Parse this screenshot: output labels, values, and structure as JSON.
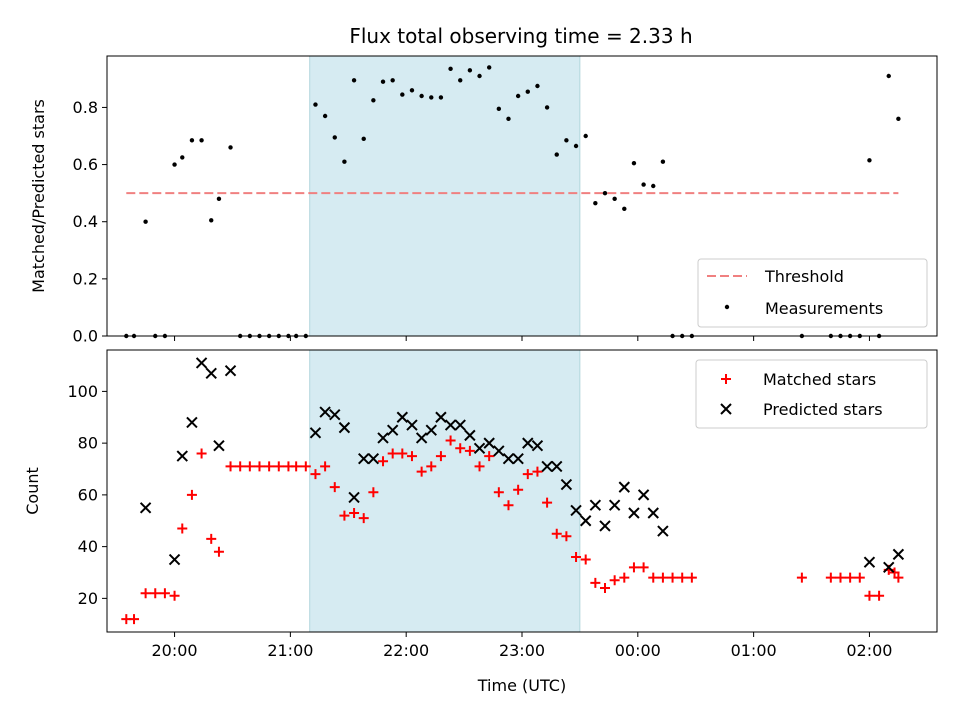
{
  "title": "Flux total observing time = 2.33 h",
  "chart_data": [
    {
      "type": "scatter",
      "panel": "top",
      "ylabel": "Matched/Predicted stars",
      "xlabel": "",
      "xlim": [
        "19:25",
        "02:35"
      ],
      "ylim": [
        0,
        0.98
      ],
      "yticks": [
        0.0,
        0.2,
        0.4,
        0.6,
        0.8
      ],
      "ytick_labels": [
        "0.0",
        "0.2",
        "0.4",
        "0.6",
        "0.8"
      ],
      "shaded_interval": [
        "21:10",
        "23:30"
      ],
      "shade_color": "#add8e6",
      "threshold": {
        "name": "Threshold",
        "y": 0.5,
        "x_range": [
          "19:35",
          "02:15"
        ],
        "color": "#f08080"
      },
      "legend": {
        "placement": "lower right",
        "entries": [
          "Threshold",
          "Measurements"
        ]
      },
      "series": [
        {
          "name": "Measurements",
          "color": "#000000",
          "marker": "dot",
          "points": [
            [
              "19:35",
              0.0
            ],
            [
              "19:39",
              0.0
            ],
            [
              "19:45",
              0.4
            ],
            [
              "19:50",
              0.0
            ],
            [
              "19:55",
              0.0
            ],
            [
              "20:00",
              0.6
            ],
            [
              "20:04",
              0.625
            ],
            [
              "20:09",
              0.685
            ],
            [
              "20:14",
              0.685
            ],
            [
              "20:19",
              0.405
            ],
            [
              "20:23",
              0.48
            ],
            [
              "20:29",
              0.66
            ],
            [
              "20:34",
              0.0
            ],
            [
              "20:39",
              0.0
            ],
            [
              "20:44",
              0.0
            ],
            [
              "20:49",
              0.0
            ],
            [
              "20:54",
              0.0
            ],
            [
              "20:59",
              0.0
            ],
            [
              "21:03",
              0.0
            ],
            [
              "21:08",
              0.0
            ],
            [
              "21:13",
              0.81
            ],
            [
              "21:18",
              0.77
            ],
            [
              "21:23",
              0.695
            ],
            [
              "21:28",
              0.61
            ],
            [
              "21:33",
              0.895
            ],
            [
              "21:38",
              0.69
            ],
            [
              "21:43",
              0.825
            ],
            [
              "21:48",
              0.89
            ],
            [
              "21:53",
              0.895
            ],
            [
              "21:58",
              0.845
            ],
            [
              "22:03",
              0.86
            ],
            [
              "22:08",
              0.84
            ],
            [
              "22:13",
              0.835
            ],
            [
              "22:18",
              0.835
            ],
            [
              "22:23",
              0.935
            ],
            [
              "22:28",
              0.895
            ],
            [
              "22:33",
              0.93
            ],
            [
              "22:38",
              0.91
            ],
            [
              "22:43",
              0.94
            ],
            [
              "22:48",
              0.795
            ],
            [
              "22:53",
              0.76
            ],
            [
              "22:58",
              0.84
            ],
            [
              "23:03",
              0.855
            ],
            [
              "23:08",
              0.875
            ],
            [
              "23:13",
              0.8
            ],
            [
              "23:18",
              0.635
            ],
            [
              "23:23",
              0.685
            ],
            [
              "23:28",
              0.665
            ],
            [
              "23:33",
              0.7
            ],
            [
              "23:38",
              0.465
            ],
            [
              "23:43",
              0.5
            ],
            [
              "23:48",
              0.48
            ],
            [
              "23:53",
              0.445
            ],
            [
              "23:58",
              0.605
            ],
            [
              "00:03",
              0.53
            ],
            [
              "00:08",
              0.525
            ],
            [
              "00:13",
              0.61
            ],
            [
              "00:18",
              0.0
            ],
            [
              "00:23",
              0.0
            ],
            [
              "00:28",
              0.0
            ],
            [
              "01:25",
              0.0
            ],
            [
              "01:40",
              0.0
            ],
            [
              "01:45",
              0.0
            ],
            [
              "01:50",
              0.0
            ],
            [
              "01:55",
              0.0
            ],
            [
              "02:00",
              0.615
            ],
            [
              "02:05",
              0.0
            ],
            [
              "02:10",
              0.91
            ],
            [
              "02:15",
              0.76
            ]
          ]
        }
      ]
    },
    {
      "type": "scatter",
      "panel": "bottom",
      "ylabel": "Count",
      "xlabel": "Time (UTC)",
      "xlim": [
        "19:25",
        "02:35"
      ],
      "ylim": [
        7,
        116
      ],
      "yticks": [
        20,
        40,
        60,
        80,
        100
      ],
      "ytick_labels": [
        "20",
        "40",
        "60",
        "80",
        "100"
      ],
      "xticks": [
        "20:00",
        "21:00",
        "22:00",
        "23:00",
        "00:00",
        "01:00",
        "02:00"
      ],
      "shaded_interval": [
        "21:10",
        "23:30"
      ],
      "shade_color": "#add8e6",
      "legend": {
        "placement": "upper right",
        "entries": [
          "Matched stars",
          "Predicted stars"
        ]
      },
      "series": [
        {
          "name": "Matched stars",
          "color": "#ff0000",
          "marker": "plus",
          "points": [
            [
              "19:35",
              12
            ],
            [
              "19:39",
              12
            ],
            [
              "19:45",
              22
            ],
            [
              "19:50",
              22
            ],
            [
              "19:55",
              22
            ],
            [
              "20:00",
              21
            ],
            [
              "20:04",
              47
            ],
            [
              "20:09",
              60
            ],
            [
              "20:14",
              76
            ],
            [
              "20:19",
              43
            ],
            [
              "20:23",
              38
            ],
            [
              "20:29",
              71
            ],
            [
              "20:34",
              71
            ],
            [
              "20:39",
              71
            ],
            [
              "20:44",
              71
            ],
            [
              "20:49",
              71
            ],
            [
              "20:54",
              71
            ],
            [
              "20:59",
              71
            ],
            [
              "21:03",
              71
            ],
            [
              "21:08",
              71
            ],
            [
              "21:13",
              68
            ],
            [
              "21:18",
              71
            ],
            [
              "21:23",
              63
            ],
            [
              "21:28",
              52
            ],
            [
              "21:33",
              53
            ],
            [
              "21:38",
              51
            ],
            [
              "21:43",
              61
            ],
            [
              "21:48",
              73
            ],
            [
              "21:53",
              76
            ],
            [
              "21:58",
              76
            ],
            [
              "22:03",
              75
            ],
            [
              "22:08",
              69
            ],
            [
              "22:13",
              71
            ],
            [
              "22:18",
              75
            ],
            [
              "22:23",
              81
            ],
            [
              "22:28",
              78
            ],
            [
              "22:33",
              77
            ],
            [
              "22:38",
              71
            ],
            [
              "22:43",
              75
            ],
            [
              "22:48",
              61
            ],
            [
              "22:53",
              56
            ],
            [
              "22:58",
              62
            ],
            [
              "23:03",
              68
            ],
            [
              "23:08",
              69
            ],
            [
              "23:13",
              57
            ],
            [
              "23:18",
              45
            ],
            [
              "23:23",
              44
            ],
            [
              "23:28",
              36
            ],
            [
              "23:33",
              35
            ],
            [
              "23:38",
              26
            ],
            [
              "23:43",
              24
            ],
            [
              "23:48",
              27
            ],
            [
              "23:53",
              28
            ],
            [
              "23:58",
              32
            ],
            [
              "00:03",
              32
            ],
            [
              "00:08",
              28
            ],
            [
              "00:13",
              28
            ],
            [
              "00:18",
              28
            ],
            [
              "00:23",
              28
            ],
            [
              "00:28",
              28
            ],
            [
              "01:25",
              28
            ],
            [
              "01:40",
              28
            ],
            [
              "01:45",
              28
            ],
            [
              "01:50",
              28
            ],
            [
              "01:55",
              28
            ],
            [
              "02:00",
              21
            ],
            [
              "02:05",
              21
            ],
            [
              "02:10",
              31
            ],
            [
              "02:13",
              30
            ],
            [
              "02:15",
              28
            ]
          ]
        },
        {
          "name": "Predicted stars",
          "color": "#000000",
          "marker": "x",
          "points": [
            [
              "19:45",
              55
            ],
            [
              "20:00",
              35
            ],
            [
              "20:04",
              75
            ],
            [
              "20:09",
              88
            ],
            [
              "20:14",
              111
            ],
            [
              "20:19",
              107
            ],
            [
              "20:23",
              79
            ],
            [
              "20:29",
              108
            ],
            [
              "21:13",
              84
            ],
            [
              "21:18",
              92
            ],
            [
              "21:23",
              91
            ],
            [
              "21:28",
              86
            ],
            [
              "21:33",
              59
            ],
            [
              "21:38",
              74
            ],
            [
              "21:43",
              74
            ],
            [
              "21:48",
              82
            ],
            [
              "21:53",
              85
            ],
            [
              "21:58",
              90
            ],
            [
              "22:03",
              87
            ],
            [
              "22:08",
              82
            ],
            [
              "22:13",
              85
            ],
            [
              "22:18",
              90
            ],
            [
              "22:23",
              87
            ],
            [
              "22:28",
              87
            ],
            [
              "22:33",
              83
            ],
            [
              "22:38",
              78
            ],
            [
              "22:43",
              80
            ],
            [
              "22:48",
              77
            ],
            [
              "22:53",
              74
            ],
            [
              "22:58",
              74
            ],
            [
              "23:03",
              80
            ],
            [
              "23:08",
              79
            ],
            [
              "23:13",
              71
            ],
            [
              "23:18",
              71
            ],
            [
              "23:23",
              64
            ],
            [
              "23:28",
              54
            ],
            [
              "23:33",
              50
            ],
            [
              "23:38",
              56
            ],
            [
              "23:43",
              48
            ],
            [
              "23:48",
              56
            ],
            [
              "23:53",
              63
            ],
            [
              "23:58",
              53
            ],
            [
              "00:03",
              60
            ],
            [
              "00:08",
              53
            ],
            [
              "00:13",
              46
            ],
            [
              "02:00",
              34
            ],
            [
              "02:10",
              32
            ],
            [
              "02:15",
              37
            ]
          ]
        }
      ]
    }
  ]
}
